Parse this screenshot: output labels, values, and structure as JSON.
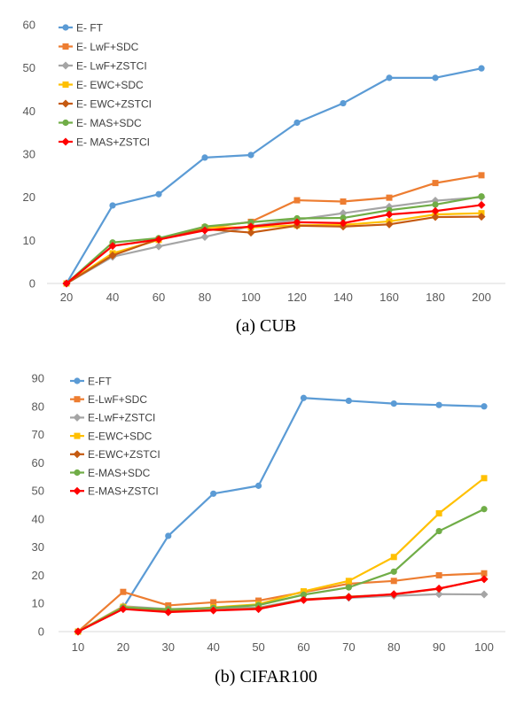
{
  "chart_data": [
    {
      "type": "line",
      "caption": "(a)  CUB",
      "x": [
        20,
        40,
        60,
        80,
        100,
        120,
        140,
        160,
        180,
        200
      ],
      "ylim": [
        0,
        60
      ],
      "yticks": [
        0,
        10,
        20,
        30,
        40,
        50,
        60
      ],
      "grid": false,
      "legend_position": "top-left",
      "series": [
        {
          "name": "E- FT",
          "color": "#5B9BD5",
          "marker": "circle",
          "values": [
            0,
            18.1,
            20.7,
            29.2,
            29.8,
            37.3,
            41.8,
            47.7,
            47.7,
            49.9
          ]
        },
        {
          "name": "E- LwF+SDC",
          "color": "#ED7D31",
          "marker": "square",
          "values": [
            0,
            6.8,
            10.2,
            12.9,
            14.3,
            19.3,
            19.0,
            19.9,
            23.3,
            25.1
          ]
        },
        {
          "name": "E- LwF+ZSTCI",
          "color": "#A5A5A5",
          "marker": "diamond",
          "values": [
            0,
            6.2,
            8.6,
            10.8,
            13.3,
            14.8,
            16.3,
            17.8,
            19.2,
            20.0
          ]
        },
        {
          "name": "E- EWC+SDC",
          "color": "#FFC000",
          "marker": "square",
          "values": [
            0,
            7.0,
            10.1,
            13.0,
            13.0,
            13.5,
            13.6,
            14.4,
            16.0,
            16.3
          ]
        },
        {
          "name": "E- EWC+ZSTCI",
          "color": "#C55A11",
          "marker": "diamond",
          "values": [
            0,
            6.5,
            10.3,
            12.6,
            11.8,
            13.4,
            13.2,
            13.7,
            15.4,
            15.5
          ]
        },
        {
          "name": "E- MAS+SDC",
          "color": "#70AD47",
          "marker": "circle",
          "values": [
            0,
            9.5,
            10.5,
            13.2,
            14.2,
            15.1,
            15.2,
            17.0,
            18.3,
            20.2
          ]
        },
        {
          "name": "E- MAS+ZSTCI",
          "color": "#FF0000",
          "marker": "diamond",
          "values": [
            0,
            8.7,
            10.2,
            12.3,
            13.2,
            14.2,
            14.0,
            16.0,
            16.8,
            18.2
          ]
        }
      ]
    },
    {
      "type": "line",
      "caption": "(b)  CIFAR100",
      "x": [
        10,
        20,
        30,
        40,
        50,
        60,
        70,
        80,
        90,
        100
      ],
      "ylim": [
        0,
        90
      ],
      "yticks": [
        0,
        10,
        20,
        30,
        40,
        50,
        60,
        70,
        80,
        90
      ],
      "grid": false,
      "legend_position": "top-left",
      "series": [
        {
          "name": "E-FT",
          "color": "#5B9BD5",
          "marker": "circle",
          "values": [
            0,
            8.5,
            34.0,
            49.0,
            51.8,
            83.0,
            82.0,
            81.0,
            80.5,
            80.0
          ]
        },
        {
          "name": "E-LwF+SDC",
          "color": "#ED7D31",
          "marker": "square",
          "values": [
            0,
            14.1,
            9.3,
            10.4,
            11.0,
            14.0,
            17.0,
            18.0,
            20.0,
            20.7
          ]
        },
        {
          "name": "E-LwF+ZSTCI",
          "color": "#A5A5A5",
          "marker": "diamond",
          "values": [
            0,
            9.0,
            8.0,
            8.3,
            8.5,
            11.5,
            12.0,
            12.7,
            13.3,
            13.2
          ]
        },
        {
          "name": "E-EWC+SDC",
          "color": "#FFC000",
          "marker": "square",
          "values": [
            0,
            8.8,
            7.6,
            8.6,
            9.7,
            14.3,
            18.0,
            26.5,
            42.0,
            54.5
          ]
        },
        {
          "name": "E-EWC+ZSTCI",
          "color": "#C55A11",
          "marker": "diamond",
          "values": [
            0,
            8.2,
            7.2,
            7.6,
            8.2,
            11.4,
            12.4,
            13.2,
            15.2,
            18.7
          ]
        },
        {
          "name": "E-MAS+SDC",
          "color": "#70AD47",
          "marker": "circle",
          "values": [
            0,
            8.6,
            7.9,
            8.4,
            9.4,
            13.1,
            15.7,
            21.3,
            35.7,
            43.5
          ]
        },
        {
          "name": "E-MAS+ZSTCI",
          "color": "#FF0000",
          "marker": "diamond",
          "values": [
            0,
            8.0,
            6.9,
            7.5,
            8.0,
            11.2,
            12.2,
            13.3,
            15.3,
            18.6
          ]
        }
      ]
    }
  ]
}
